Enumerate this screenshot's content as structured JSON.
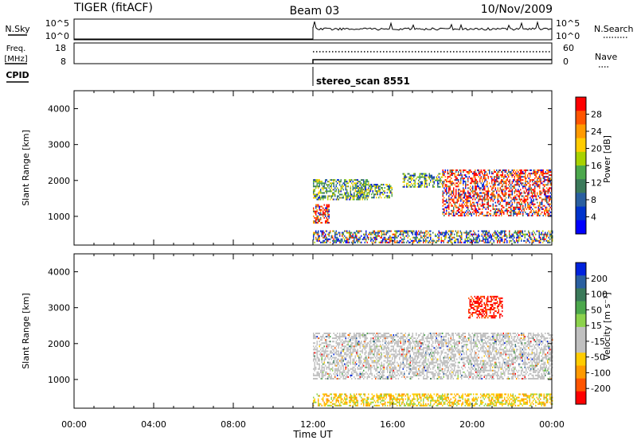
{
  "header": {
    "station": "TIGER (fitACF)",
    "beam": "Beam 03",
    "date": "10/Nov/2009"
  },
  "chart_data": [
    {
      "id": "nsky-panel",
      "type": "line",
      "ylabel": "N.Sky",
      "ylabel_right": "N.Search",
      "left_ticks": [
        "10^5",
        "10^0"
      ],
      "right_ticks": [
        "10^5",
        "10^0"
      ],
      "legend_style": "dotted"
    },
    {
      "id": "freq-panel",
      "type": "line",
      "ylabel_lines": [
        "Freq.",
        "[MHz]"
      ],
      "ylabel_right": "Nave",
      "left_ticks": [
        "18",
        "8"
      ],
      "right_ticks": [
        "60",
        "0"
      ],
      "series": [
        {
          "name": "Freq",
          "style": "solid",
          "x_range_hours": [
            12.0,
            24.0
          ]
        },
        {
          "name": "Nave",
          "style": "dotted",
          "x_range_hours": [
            12.0,
            24.0
          ]
        }
      ]
    },
    {
      "id": "cpid",
      "label": "CPID",
      "start_hour": 12.0,
      "program": "stereo_scan 8551"
    },
    {
      "id": "power-panel",
      "type": "heatmap",
      "ylabel": "Slant Range [km]",
      "ylim": [
        200,
        4500
      ],
      "y_ticks": [
        "4000",
        "3000",
        "2000",
        "1000"
      ],
      "xlim_hours": [
        0,
        24
      ],
      "data_start_hour": 12.0,
      "colorbar": {
        "label": "Power [dB]",
        "ticks": [
          "28",
          "24",
          "20",
          "16",
          "12",
          "8",
          "4"
        ],
        "colors": [
          "#ff0000",
          "#ff5500",
          "#ff9a00",
          "#ffcc00",
          "#a8d200",
          "#4ca84c",
          "#3b7a5a",
          "#2a5fa0",
          "#0033cc",
          "#0000ff"
        ]
      },
      "echo_regions": [
        {
          "t": [
            12.0,
            24.0
          ],
          "r": [
            250,
            600
          ],
          "power": "mixed"
        },
        {
          "t": [
            12.0,
            14.8
          ],
          "r": [
            1450,
            2000
          ],
          "power": "medium"
        },
        {
          "t": [
            12.0,
            12.8
          ],
          "r": [
            800,
            1300
          ],
          "power": "high"
        },
        {
          "t": [
            14.2,
            16.0
          ],
          "r": [
            1500,
            1900
          ],
          "power": "medium"
        },
        {
          "t": [
            18.5,
            24.0
          ],
          "r": [
            1000,
            2300
          ],
          "power": "high"
        },
        {
          "t": [
            16.5,
            18.5
          ],
          "r": [
            1800,
            2200
          ],
          "power": "medium"
        }
      ]
    },
    {
      "id": "velocity-panel",
      "type": "heatmap",
      "ylabel": "Slant Range [km]",
      "ylim": [
        200,
        4500
      ],
      "y_ticks": [
        "4000",
        "3000",
        "2000",
        "1000"
      ],
      "xlim_hours": [
        0,
        24
      ],
      "data_start_hour": 12.0,
      "xlabel": "Time UT",
      "x_ticks": [
        "00:00",
        "04:00",
        "08:00",
        "12:00",
        "16:00",
        "20:00",
        "00:00"
      ],
      "colorbar": {
        "label": "Velocity [m s⁻¹]",
        "ticks": [
          "200",
          "100",
          "50",
          "15",
          "-15",
          "-50",
          "-100",
          "-200"
        ],
        "colors": [
          "#0022dd",
          "#2a5fa0",
          "#3b7a5a",
          "#4ca84c",
          "#8cd24c",
          "#c0c0c0",
          "#c0c0c0",
          "#ffcc00",
          "#ff9a00",
          "#ff5500",
          "#ff0000"
        ]
      },
      "echo_regions": [
        {
          "t": [
            12.0,
            24.0
          ],
          "r": [
            250,
            600
          ],
          "velocity": "negative"
        },
        {
          "t": [
            12.0,
            24.0
          ],
          "r": [
            1000,
            2300
          ],
          "velocity": "near-zero"
        },
        {
          "t": [
            19.8,
            21.5
          ],
          "r": [
            2700,
            3300
          ],
          "velocity": "negative-strong"
        }
      ]
    }
  ]
}
